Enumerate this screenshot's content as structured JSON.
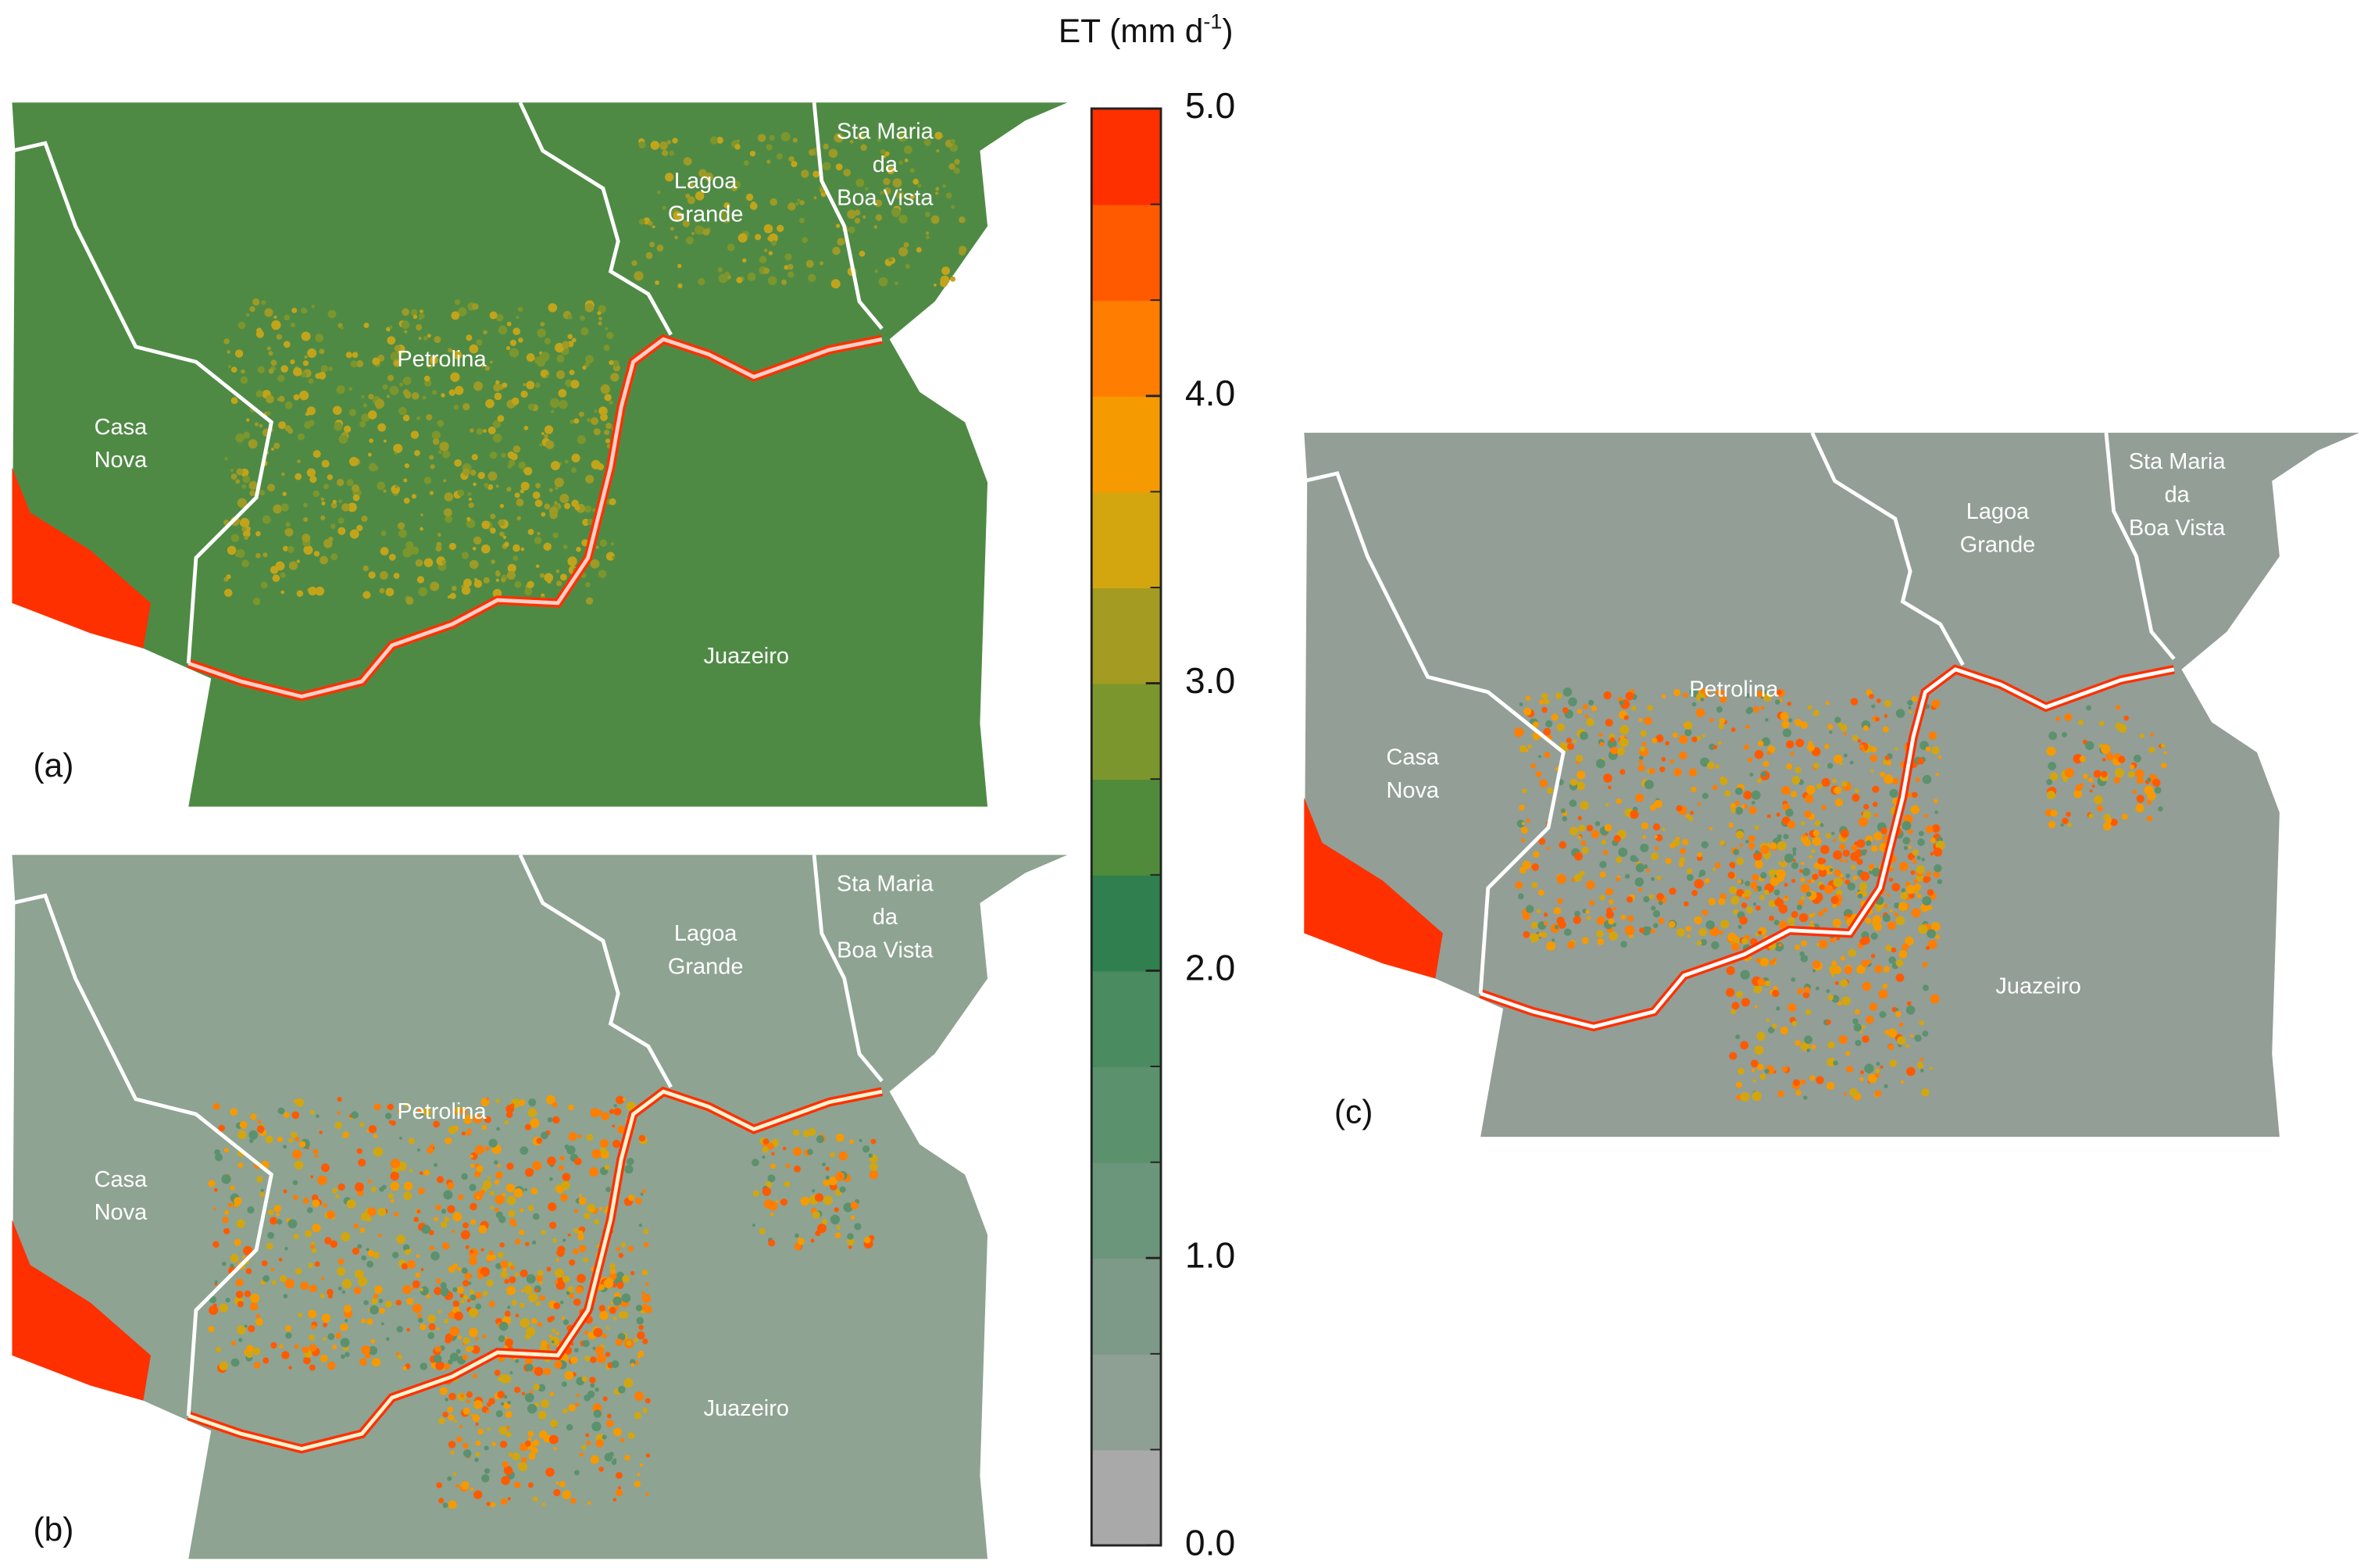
{
  "colorbar": {
    "title": "ET (mm d",
    "title_sup": "-1",
    "title_end": ")",
    "lim": [
      0,
      5
    ],
    "ticks": [
      {
        "value": 0,
        "label": "0.0"
      },
      {
        "value": 1,
        "label": "1.0"
      },
      {
        "value": 2,
        "label": "2.0"
      },
      {
        "value": 3,
        "label": "3.0"
      },
      {
        "value": 4,
        "label": "4.0"
      },
      {
        "value": 5,
        "label": "5.0"
      }
    ],
    "colors": [
      "#a9a9a9",
      "#8e9f94",
      "#7c9a87",
      "#6c967b",
      "#5c916e",
      "#4a8b60",
      "#2f7f4f",
      "#4f8b3b",
      "#7b962d",
      "#a39b22",
      "#d3a60f",
      "#f59a00",
      "#ff7d00",
      "#ff5a00",
      "#ff3000"
    ]
  },
  "panels": [
    {
      "label": "(a)",
      "places": [
        {
          "lines": [
            "Casa",
            "Nova"
          ]
        },
        {
          "lines": [
            "Petrolina"
          ]
        },
        {
          "lines": [
            "Lagoa",
            "Grande"
          ]
        },
        {
          "lines": [
            "Sta Maria",
            "da",
            "Boa Vista"
          ]
        },
        {
          "lines": [
            "Juazeiro"
          ]
        }
      ]
    },
    {
      "label": "(b)",
      "places": [
        {
          "lines": [
            "Casa",
            "Nova"
          ]
        },
        {
          "lines": [
            "Petrolina"
          ]
        },
        {
          "lines": [
            "Lagoa",
            "Grande"
          ]
        },
        {
          "lines": [
            "Sta Maria",
            "da",
            "Boa Vista"
          ]
        },
        {
          "lines": [
            "Juazeiro"
          ]
        }
      ]
    },
    {
      "label": "(c)",
      "places": [
        {
          "lines": [
            "Casa",
            "Nova"
          ]
        },
        {
          "lines": [
            "Petrolina"
          ]
        },
        {
          "lines": [
            "Lagoa",
            "Grande"
          ]
        },
        {
          "lines": [
            "Sta Maria",
            "da",
            "Boa Vista"
          ]
        },
        {
          "lines": [
            "Juazeiro"
          ]
        }
      ]
    }
  ]
}
